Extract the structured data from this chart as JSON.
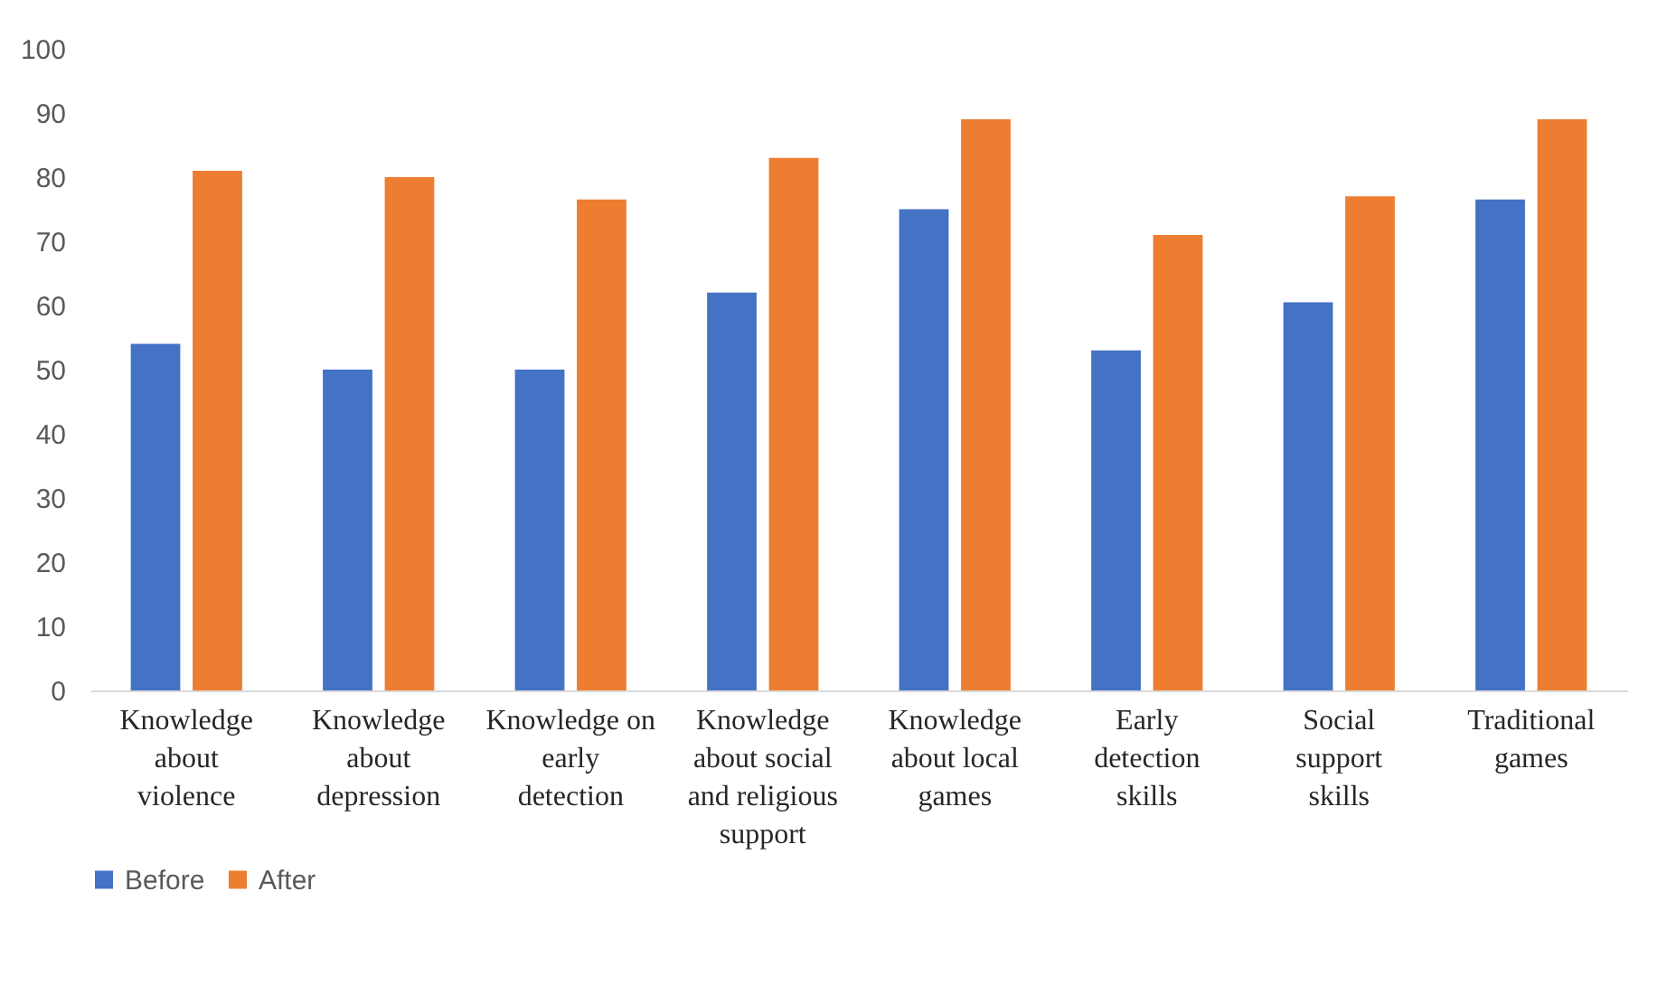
{
  "chart_data": {
    "type": "bar",
    "categories": [
      "Knowledge about violence",
      "Knowledge about depression",
      "Knowledge on early detection",
      "Knowledge about social and religious support",
      "Knowledge about local games",
      "Early detection skills",
      "Social support skills",
      "Traditional games"
    ],
    "series": [
      {
        "name": "Before",
        "color": "#4472c4",
        "values": [
          54,
          50,
          50,
          62,
          75,
          53,
          60.5,
          76.5
        ]
      },
      {
        "name": "After",
        "color": "#ed7d31",
        "values": [
          81,
          80,
          76.5,
          83,
          89,
          71,
          77,
          89
        ]
      }
    ],
    "ylim": [
      0,
      100
    ],
    "yticks": [
      0,
      10,
      20,
      30,
      40,
      50,
      60,
      70,
      80,
      90,
      100
    ],
    "grid": false,
    "legend": "bottom"
  }
}
